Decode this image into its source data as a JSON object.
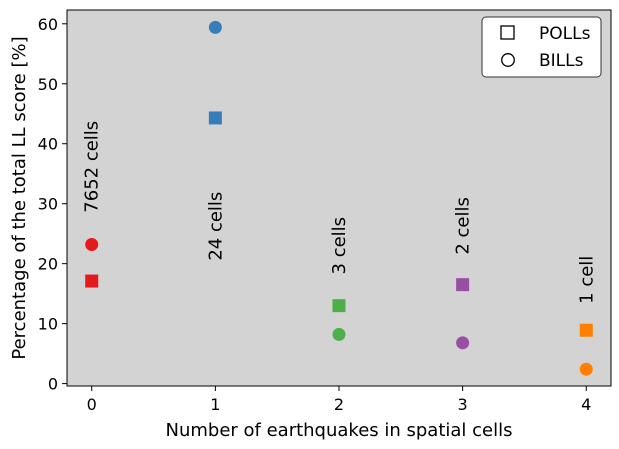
{
  "chart_data": {
    "type": "scatter",
    "xlabel": "Number of earthquakes in spatial cells",
    "ylabel": "Percentage of the total LL score [%]",
    "xlim": [
      -0.2,
      4.2
    ],
    "ylim": [
      -0.4,
      62.3
    ],
    "x_ticks": [
      "0",
      "1",
      "2",
      "3",
      "4"
    ],
    "y_ticks": [
      "0",
      "10",
      "20",
      "30",
      "40",
      "50",
      "60"
    ],
    "plot_background": "#d3d3d3",
    "grid": false,
    "legend_position": "top-right",
    "legend": [
      {
        "marker": "square",
        "label": "POLLs"
      },
      {
        "marker": "circle",
        "label": "BILLs"
      }
    ],
    "series": [
      {
        "name": "POLLs",
        "marker": "square",
        "x": [
          0,
          1,
          2,
          3,
          4
        ],
        "y": [
          17.1,
          44.3,
          13.0,
          16.5,
          8.9
        ]
      },
      {
        "name": "BILLs",
        "marker": "circle",
        "x": [
          0,
          1,
          2,
          3,
          4
        ],
        "y": [
          23.2,
          59.4,
          8.2,
          6.8,
          2.4
        ]
      }
    ],
    "point_colors": [
      "#e41a1c",
      "#377eb8",
      "#4daf4a",
      "#984ea3",
      "#ff7f00"
    ],
    "annotations": [
      {
        "x": 0,
        "y": 28.5,
        "text": "7652 cells"
      },
      {
        "x": 1,
        "y": 20.5,
        "text": "24 cells"
      },
      {
        "x": 2,
        "y": 18.2,
        "text": "3 cells"
      },
      {
        "x": 3,
        "y": 21.5,
        "text": "2 cells"
      },
      {
        "x": 4,
        "y": 13.3,
        "text": "1 cell"
      }
    ]
  }
}
